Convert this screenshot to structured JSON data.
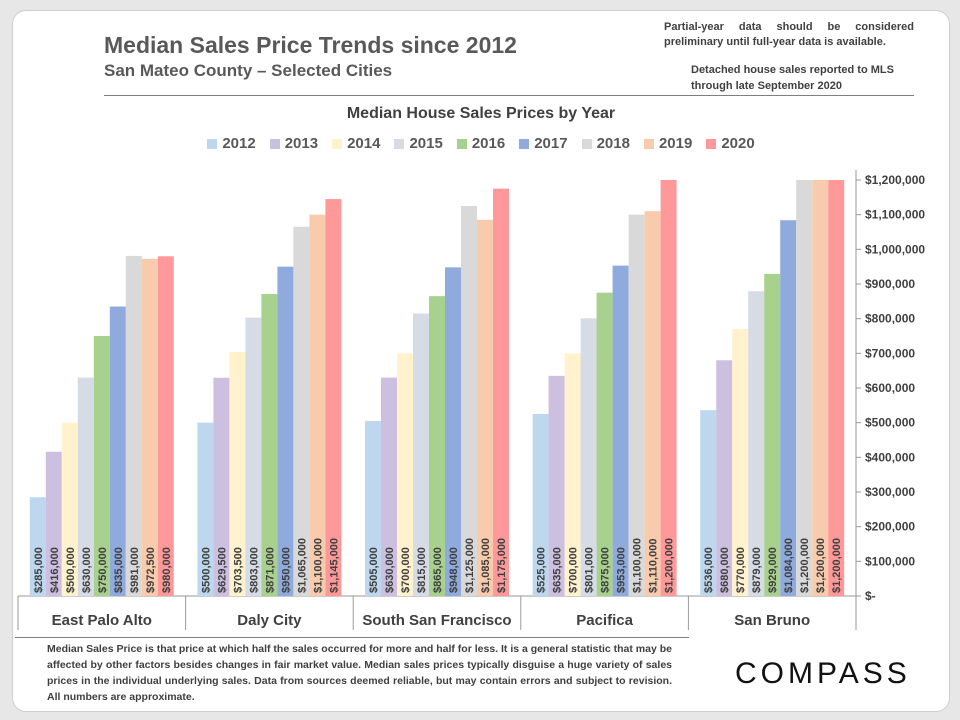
{
  "header": {
    "title": "Median Sales Price Trends since 2012",
    "subtitle": "San Mateo County – Selected Cities",
    "note_partial": "Partial-year data should be considered preliminary until full-year data is available.",
    "note_source": "Detached house sales reported to MLS through late September 2020"
  },
  "footnote": "Median Sales Price is that price at which half the sales occurred for more and half for less. It is a general statistic that may be affected by other factors besides changes in fair market value. Median sales prices typically disguise a huge variety of sales prices in the individual underlying sales. Data from sources deemed reliable, but may contain errors and subject to revision.  All numbers are approximate.",
  "logo": "COMPASS",
  "chart_data": {
    "type": "bar",
    "title": "Median House Sales Prices by Year",
    "categories": [
      "East Palo Alto",
      "Daly City",
      "South San Francisco",
      "Pacifica",
      "San Bruno"
    ],
    "series": [
      {
        "name": "2012",
        "color": "#bdd7ee",
        "values": [
          285000,
          500000,
          505000,
          525000,
          536000
        ],
        "labels": [
          "$285,000",
          "$500,000",
          "$505,000",
          "$525,000",
          "$536,000"
        ]
      },
      {
        "name": "2013",
        "color": "#cdbfdf",
        "values": [
          416000,
          629500,
          630000,
          635000,
          680000
        ],
        "labels": [
          "$416,000",
          "$629,500",
          "$630,000",
          "$635,000",
          "$680,000"
        ]
      },
      {
        "name": "2014",
        "color": "#fff2cc",
        "values": [
          500000,
          703500,
          700000,
          700000,
          770000
        ],
        "labels": [
          "$500,000",
          "$703,500",
          "$700,000",
          "$700,000",
          "$770,000"
        ]
      },
      {
        "name": "2015",
        "color": "#d6dce5",
        "values": [
          630000,
          803000,
          815000,
          801000,
          879000
        ],
        "labels": [
          "$630,000",
          "$803,000",
          "$815,000",
          "$801,000",
          "$879,000"
        ]
      },
      {
        "name": "2016",
        "color": "#a9d18e",
        "values": [
          750000,
          871000,
          865000,
          875000,
          929000
        ],
        "labels": [
          "$750,000",
          "$871,000",
          "$865,000",
          "$875,000",
          "$929,000"
        ]
      },
      {
        "name": "2017",
        "color": "#8faadc",
        "values": [
          835000,
          950000,
          948000,
          953000,
          1084000
        ],
        "labels": [
          "$835,000",
          "$950,000",
          "$948,000",
          "$953,000",
          "$1,084,000"
        ]
      },
      {
        "name": "2018",
        "color": "#d9d9d9",
        "values": [
          981000,
          1065000,
          1125000,
          1100000,
          1200000
        ],
        "labels": [
          "$981,000",
          "$1,065,000",
          "$1,125,000",
          "$1,100,000",
          "$1,200,000"
        ]
      },
      {
        "name": "2019",
        "color": "#f8cbad",
        "values": [
          972500,
          1100000,
          1085000,
          1110000,
          1200000
        ],
        "labels": [
          "$972,500",
          "$1,100,000",
          "$1,085,000",
          "$1,110,000",
          "$1,200,000"
        ]
      },
      {
        "name": "2020",
        "color": "#ff9999",
        "values": [
          980000,
          1145000,
          1175000,
          1200000,
          1200000
        ],
        "labels": [
          "$980,000",
          "$1,145,000",
          "$1,175,000",
          "$1,200,000",
          "$1,200,000"
        ]
      }
    ],
    "ylim": [
      0,
      1200000
    ],
    "yticks": [
      0,
      100000,
      200000,
      300000,
      400000,
      500000,
      600000,
      700000,
      800000,
      900000,
      1000000,
      1100000,
      1200000
    ],
    "ytick_labels": [
      "$-",
      "$100,000",
      "$200,000",
      "$300,000",
      "$400,000",
      "$500,000",
      "$600,000",
      "$700,000",
      "$800,000",
      "$900,000",
      "$1,000,000",
      "$1,100,000",
      "$1,200,000"
    ],
    "yaxis_side": "right",
    "legend_position": "top",
    "grid": false
  }
}
